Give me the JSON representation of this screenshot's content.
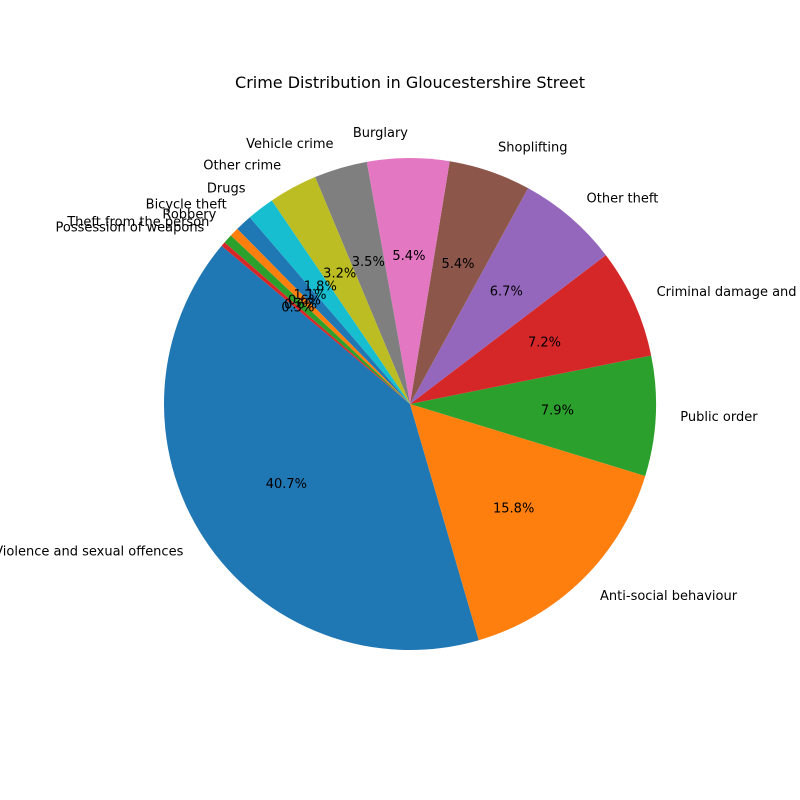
{
  "chart_data": {
    "type": "pie",
    "title": "Crime Distribution in Gloucestershire Street",
    "categories": [
      "Violence and sexual offences",
      "Anti-social behaviour",
      "Public order",
      "Criminal damage and arson",
      "Other theft",
      "Shoplifting",
      "Burglary",
      "Vehicle crime",
      "Other crime",
      "Drugs",
      "Bicycle theft",
      "Robbery",
      "Theft from the person",
      "Possession of weapons"
    ],
    "values": [
      40.7,
      15.8,
      7.9,
      7.2,
      6.7,
      5.4,
      5.4,
      3.5,
      3.2,
      1.8,
      1.1,
      0.6,
      0.6,
      0.3
    ],
    "percent_labels": [
      "40.7%",
      "15.8%",
      "7.9%",
      "7.2%",
      "6.7%",
      "5.4%",
      "5.4%",
      "3.5%",
      "3.2%",
      "1.8%",
      "1.1%",
      "0.6%",
      "0.6%",
      "0.3%"
    ],
    "colors": [
      "#1f77b4",
      "#ff7f0e",
      "#2ca02c",
      "#d62728",
      "#9467bd",
      "#8c564b",
      "#e377c2",
      "#7f7f7f",
      "#bcbd22",
      "#17becf",
      "#1f77b4",
      "#ff7f0e",
      "#2ca02c",
      "#d62728"
    ],
    "start_angle_deg": 140,
    "direction": "counterclockwise",
    "legend": "none"
  }
}
